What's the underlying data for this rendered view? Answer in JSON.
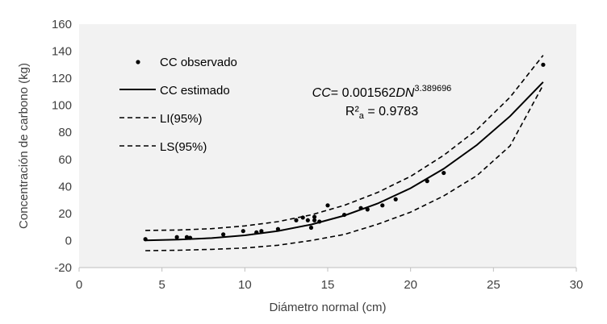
{
  "chart_data": {
    "type": "scatter",
    "title": "",
    "xlabel": "Diámetro normal (cm)",
    "ylabel": "Concentración de carbono (kg)",
    "xlim": [
      0,
      30
    ],
    "ylim": [
      -20,
      160
    ],
    "xticks": [
      0,
      5,
      10,
      15,
      20,
      25,
      30
    ],
    "yticks": [
      -20,
      0,
      20,
      40,
      60,
      80,
      100,
      120,
      140,
      160
    ],
    "grid": false,
    "plot_background": "#f2f2f2",
    "legend_position": "top-left",
    "legend": [
      {
        "label": "CC observado",
        "style": "dot"
      },
      {
        "label": "CC estimado",
        "style": "solid"
      },
      {
        "label": "LI(95%)",
        "style": "dashed"
      },
      {
        "label": "LS(95%)",
        "style": "dashed"
      }
    ],
    "equation": {
      "lhs": "CC",
      "eq": "= 0.001562",
      "var": "DN",
      "exp": "3.389696",
      "r2_label": "R²",
      "r2_sub": "a",
      "r2_value": " = 0.9783"
    },
    "series": [
      {
        "name": "CC observado",
        "type": "scatter",
        "x": [
          4.0,
          5.9,
          6.5,
          6.7,
          8.7,
          9.9,
          10.7,
          11.0,
          12.0,
          13.1,
          13.5,
          13.8,
          14.0,
          14.2,
          14.2,
          14.5,
          15.0,
          16.0,
          17.0,
          17.4,
          18.3,
          19.1,
          21.0,
          22.0,
          28.0
        ],
        "y": [
          1,
          2.5,
          2.5,
          2,
          4.5,
          7,
          6,
          7,
          8.5,
          15,
          17,
          15,
          9.5,
          15,
          17.5,
          14,
          26,
          19,
          24,
          23,
          26,
          30.5,
          44,
          50,
          130
        ]
      },
      {
        "name": "CC estimado",
        "type": "line",
        "style": "solid",
        "x": [
          4,
          6,
          8,
          10,
          12,
          14,
          16,
          18,
          20,
          22,
          24,
          26,
          28
        ],
        "y": [
          0.17,
          0.68,
          1.8,
          3.82,
          7.06,
          11.83,
          18.46,
          27.31,
          38.72,
          53.05,
          70.66,
          91.93,
          117.22
        ]
      },
      {
        "name": "LI(95%)",
        "type": "line",
        "style": "dashed",
        "x": [
          4,
          6,
          8,
          10,
          12,
          14,
          16,
          18,
          20,
          22,
          24,
          26,
          28
        ],
        "y": [
          -7.5,
          -7.2,
          -6.5,
          -5.5,
          -3.5,
          0,
          4.5,
          12,
          21,
          33,
          48,
          70,
          115
        ]
      },
      {
        "name": "LS(95%)",
        "type": "line",
        "style": "dashed",
        "x": [
          4,
          6,
          8,
          10,
          12,
          14,
          16,
          18,
          20,
          22,
          24,
          26,
          28
        ],
        "y": [
          7.5,
          7.8,
          8.8,
          10.8,
          14,
          19,
          26,
          35.5,
          47.5,
          63,
          82,
          106,
          137
        ]
      }
    ]
  }
}
